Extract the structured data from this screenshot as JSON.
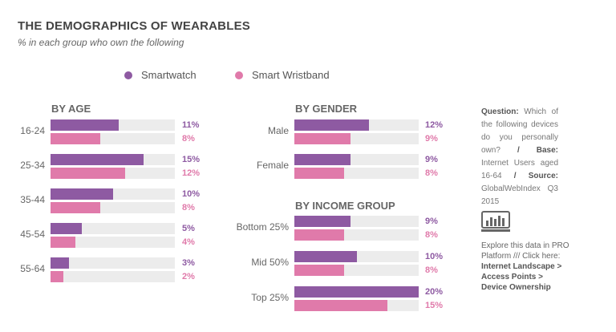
{
  "title": "THE DEMOGRAPHICS OF WEARABLES",
  "subtitle": "% in each group who own the following",
  "colors": {
    "smartwatch": "#8e5aa2",
    "wristband": "#e07aaa",
    "track": "#ececec"
  },
  "chart_data": {
    "type": "bar",
    "orientation": "horizontal",
    "xlim": [
      0,
      20
    ],
    "legend": [
      "Smartwatch",
      "Smart Wristband"
    ],
    "groups": [
      {
        "heading": "BY AGE",
        "categories": [
          "16-24",
          "25-34",
          "35-44",
          "45-54",
          "55-64"
        ],
        "series": [
          {
            "name": "Smartwatch",
            "values": [
              11,
              15,
              10,
              5,
              3
            ],
            "labels": [
              "11%",
              "15%",
              "10%",
              "5%",
              "3%"
            ]
          },
          {
            "name": "Smart Wristband",
            "values": [
              8,
              12,
              8,
              4,
              2
            ],
            "labels": [
              "8%",
              "12%",
              "8%",
              "4%",
              "2%"
            ]
          }
        ]
      },
      {
        "heading": "BY GENDER",
        "categories": [
          "Male",
          "Female"
        ],
        "series": [
          {
            "name": "Smartwatch",
            "values": [
              12,
              9
            ],
            "labels": [
              "12%",
              "9%"
            ]
          },
          {
            "name": "Smart Wristband",
            "values": [
              9,
              8
            ],
            "labels": [
              "9%",
              "8%"
            ]
          }
        ]
      },
      {
        "heading": "BY INCOME GROUP",
        "categories": [
          "Bottom 25%",
          "Mid 50%",
          "Top 25%"
        ],
        "series": [
          {
            "name": "Smartwatch",
            "values": [
              9,
              10,
              20
            ],
            "labels": [
              "9%",
              "10%",
              "20%"
            ]
          },
          {
            "name": "Smart Wristband",
            "values": [
              8,
              8,
              15
            ],
            "labels": [
              "8%",
              "8%",
              "15%"
            ]
          }
        ]
      }
    ]
  },
  "note": {
    "question_label": "Question:",
    "question_text": "Which of the following devices do you personally own?",
    "base_label": "/ Base:",
    "base_text": "Internet Users aged 16-64",
    "source_label": "/ Source:",
    "source_text": "GlobalWebIndex Q3 2015"
  },
  "explore": {
    "text": "Explore this data in PRO Platform /// Click here:",
    "link": "Internet Landscape > Access Points > Device Ownership"
  }
}
